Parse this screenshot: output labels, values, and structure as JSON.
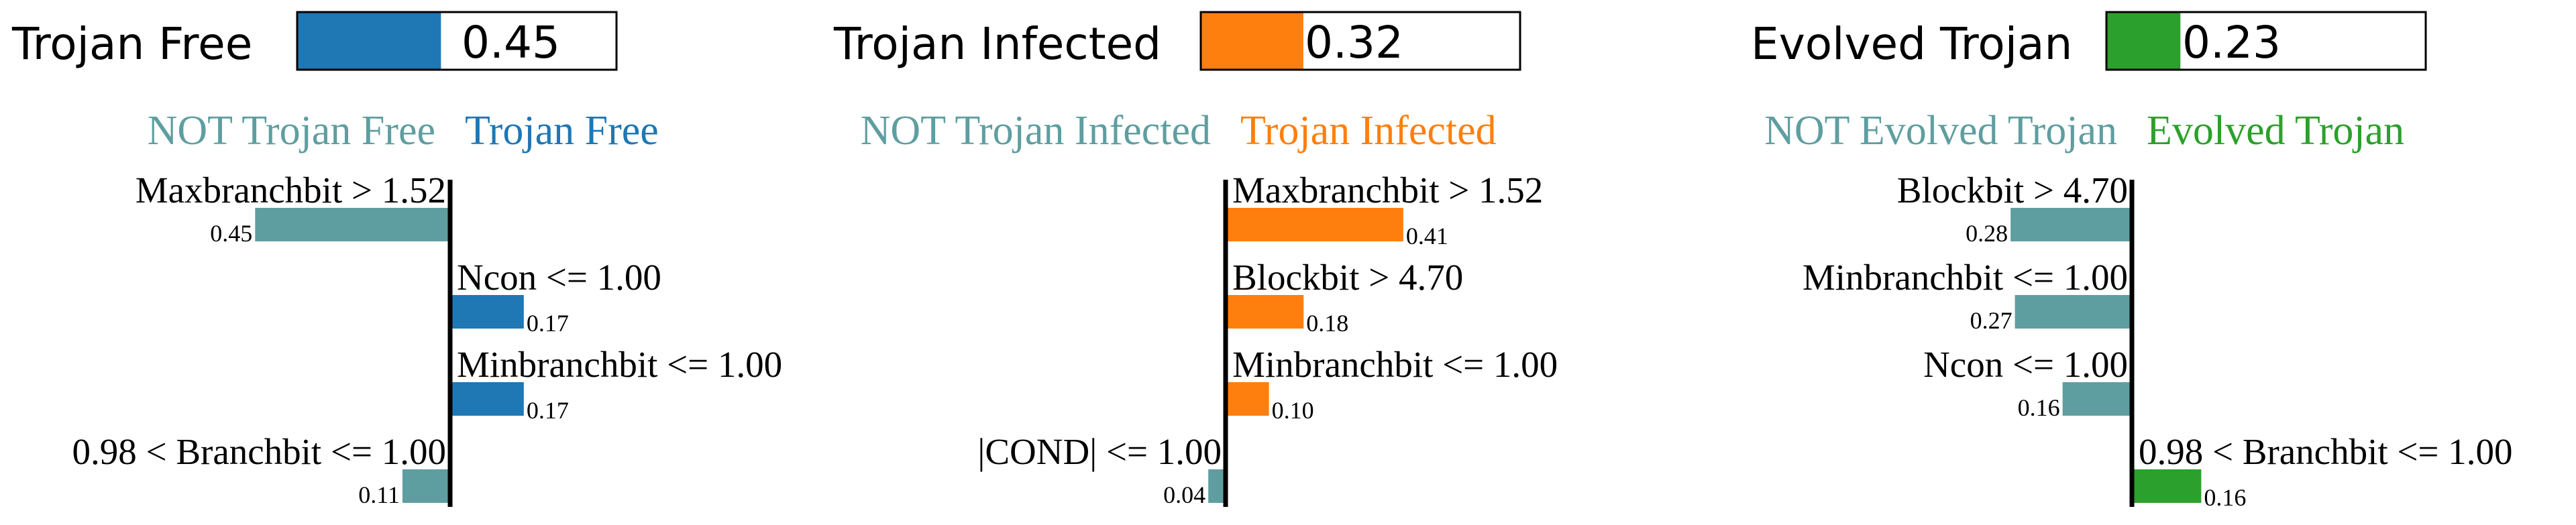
{
  "chart_data": {
    "type": "bar",
    "prediction_probabilities": [
      {
        "name": "Trojan Free",
        "value": 0.45,
        "value_label": "0.45",
        "color": "#1f77b4"
      },
      {
        "name": "Trojan Infected",
        "value": 0.32,
        "value_label": "0.32",
        "color": "#ff7f0e"
      },
      {
        "name": "Evolved Trojan",
        "value": 0.23,
        "value_label": "0.23",
        "color": "#2ca02c"
      }
    ],
    "negative_color": "#5f9ea0",
    "panels": [
      {
        "not_label": "NOT Trojan Free",
        "class_label": "Trojan Free",
        "class_color": "#1f77b4",
        "max_value": 0.45,
        "features": [
          {
            "condition": "Maxbranchbit > 1.52",
            "value": -0.45,
            "label": "0.45"
          },
          {
            "condition": "Ncon <= 1.00",
            "value": 0.17,
            "label": "0.17"
          },
          {
            "condition": "Minbranchbit <= 1.00",
            "value": 0.17,
            "label": "0.17"
          },
          {
            "condition": "0.98 < Branchbit <= 1.00",
            "value": -0.11,
            "label": "0.11"
          }
        ]
      },
      {
        "not_label": "NOT Trojan Infected",
        "class_label": "Trojan Infected",
        "class_color": "#ff7f0e",
        "max_value": 0.45,
        "features": [
          {
            "condition": "Maxbranchbit > 1.52",
            "value": 0.41,
            "label": "0.41"
          },
          {
            "condition": "Blockbit > 4.70",
            "value": 0.18,
            "label": "0.18"
          },
          {
            "condition": "Minbranchbit <= 1.00",
            "value": 0.1,
            "label": "0.10"
          },
          {
            "condition": "|COND| <= 1.00",
            "value": -0.04,
            "label": "0.04"
          }
        ]
      },
      {
        "not_label": "NOT Evolved Trojan",
        "class_label": "Evolved Trojan",
        "class_color": "#2ca02c",
        "max_value": 0.45,
        "features": [
          {
            "condition": "Blockbit > 4.70",
            "value": -0.28,
            "label": "0.28"
          },
          {
            "condition": "Minbranchbit <= 1.00",
            "value": -0.27,
            "label": "0.27"
          },
          {
            "condition": "Ncon <= 1.00",
            "value": -0.16,
            "label": "0.16"
          },
          {
            "condition": "0.98 < Branchbit <= 1.00",
            "value": 0.16,
            "label": "0.16"
          }
        ]
      }
    ]
  }
}
